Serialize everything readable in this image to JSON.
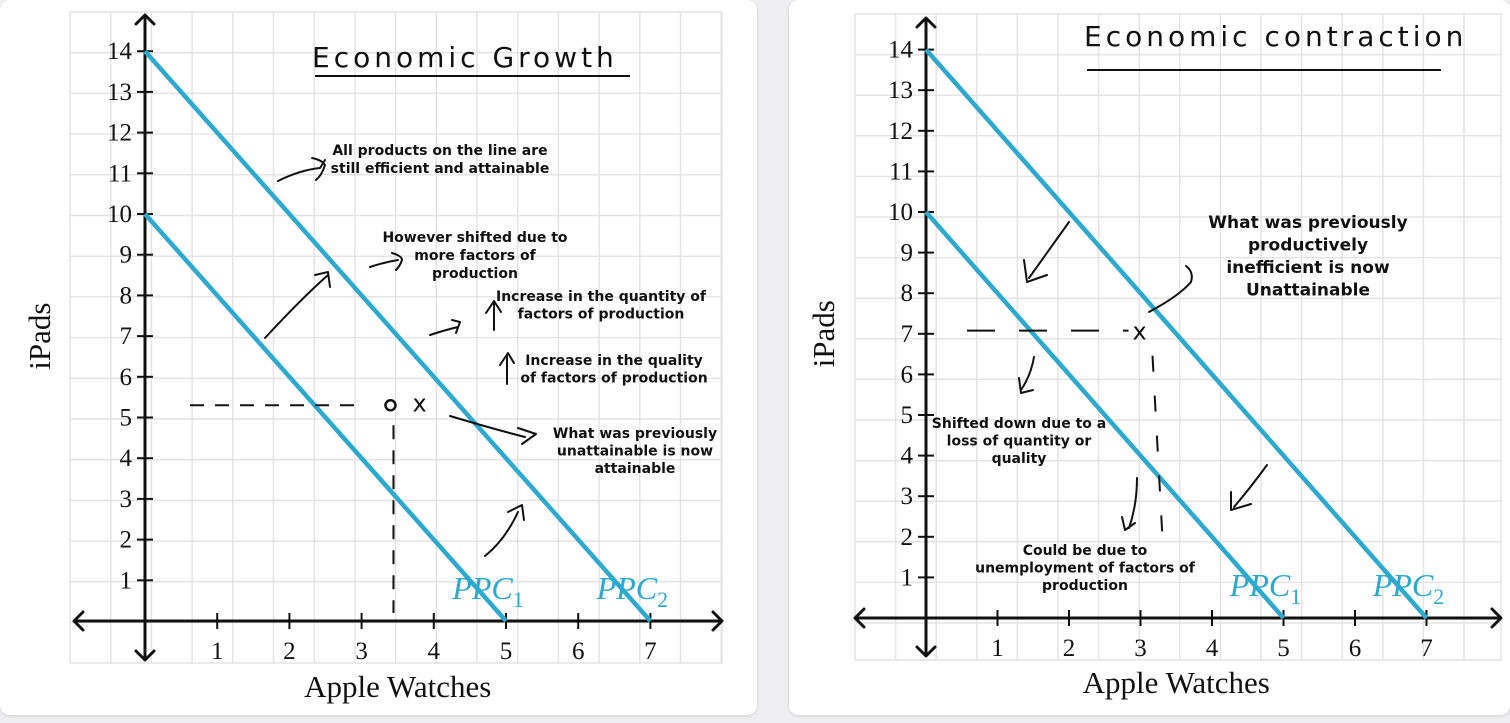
{
  "chart_data": [
    {
      "type": "line",
      "title": "Economic Growth",
      "xlabel": "Apple Watches",
      "ylabel": "iPads",
      "xlim": [
        0,
        7
      ],
      "ylim": [
        0,
        14
      ],
      "xticks": [
        "1",
        "2",
        "3",
        "4",
        "5",
        "6",
        "7"
      ],
      "yticks": [
        "1",
        "2",
        "3",
        "4",
        "5",
        "6",
        "7",
        "8",
        "9",
        "10",
        "11",
        "12",
        "13",
        "14"
      ],
      "grid": true,
      "line_color": "#2ba9cf",
      "series": [
        {
          "name": "PPC1",
          "x": [
            0,
            5
          ],
          "y": [
            10,
            0
          ]
        },
        {
          "name": "PPC2",
          "x": [
            0,
            7
          ],
          "y": [
            14,
            0
          ]
        }
      ],
      "marked_point": {
        "x": 3.4,
        "y": 5.3,
        "label": "x"
      },
      "annotations": [
        "All products on the line are still efficient and attainable",
        "However shifted due to more factors of production",
        "Increase in the quantity of factors of production",
        "Increase in the quality of factors of production",
        "What was previously unattainable is now attainable"
      ]
    },
    {
      "type": "line",
      "title": "Economic contraction",
      "xlabel": "Apple Watches",
      "ylabel": "iPads",
      "xlim": [
        0,
        7
      ],
      "ylim": [
        0,
        14
      ],
      "xticks": [
        "1",
        "2",
        "3",
        "4",
        "5",
        "6",
        "7"
      ],
      "yticks": [
        "1",
        "2",
        "3",
        "4",
        "5",
        "6",
        "7",
        "8",
        "9",
        "10",
        "11",
        "12",
        "13",
        "14"
      ],
      "grid": true,
      "line_color": "#2ba9cf",
      "series": [
        {
          "name": "PPC1",
          "x": [
            0,
            5
          ],
          "y": [
            10,
            0
          ]
        },
        {
          "name": "PPC2",
          "x": [
            0,
            7
          ],
          "y": [
            14,
            0
          ]
        }
      ],
      "marked_point": {
        "x": 3.0,
        "y": 7.2,
        "label": "x"
      },
      "annotations": [
        "What was previously productively inefficient is now Unattainable",
        "Shifted down due to a loss of quantity or quality",
        "Could be due to unemployment of factors of production"
      ]
    }
  ]
}
